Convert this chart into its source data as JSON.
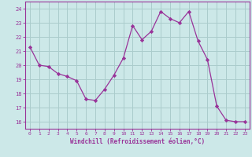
{
  "x": [
    0,
    1,
    2,
    3,
    4,
    5,
    6,
    7,
    8,
    9,
    10,
    11,
    12,
    13,
    14,
    15,
    16,
    17,
    18,
    19,
    20,
    21,
    22,
    23
  ],
  "y": [
    21.3,
    20.0,
    19.9,
    19.4,
    19.2,
    18.9,
    17.6,
    17.5,
    18.3,
    19.3,
    20.5,
    22.8,
    21.8,
    22.4,
    23.8,
    23.3,
    23.0,
    23.8,
    21.7,
    20.4,
    17.1,
    16.1,
    16.0,
    16.0
  ],
  "xlim": [
    -0.5,
    23.5
  ],
  "ylim": [
    15.5,
    24.5
  ],
  "yticks": [
    16,
    17,
    18,
    19,
    20,
    21,
    22,
    23,
    24
  ],
  "xticks": [
    0,
    1,
    2,
    3,
    4,
    5,
    6,
    7,
    8,
    9,
    10,
    11,
    12,
    13,
    14,
    15,
    16,
    17,
    18,
    19,
    20,
    21,
    22,
    23
  ],
  "xlabel": "Windchill (Refroidissement éolien,°C)",
  "line_color": "#993399",
  "marker": "D",
  "marker_size": 2.2,
  "bg_color": "#cce8e8",
  "grid_color": "#aacccc",
  "tick_color": "#993399",
  "label_color": "#993399",
  "spine_color": "#993399"
}
